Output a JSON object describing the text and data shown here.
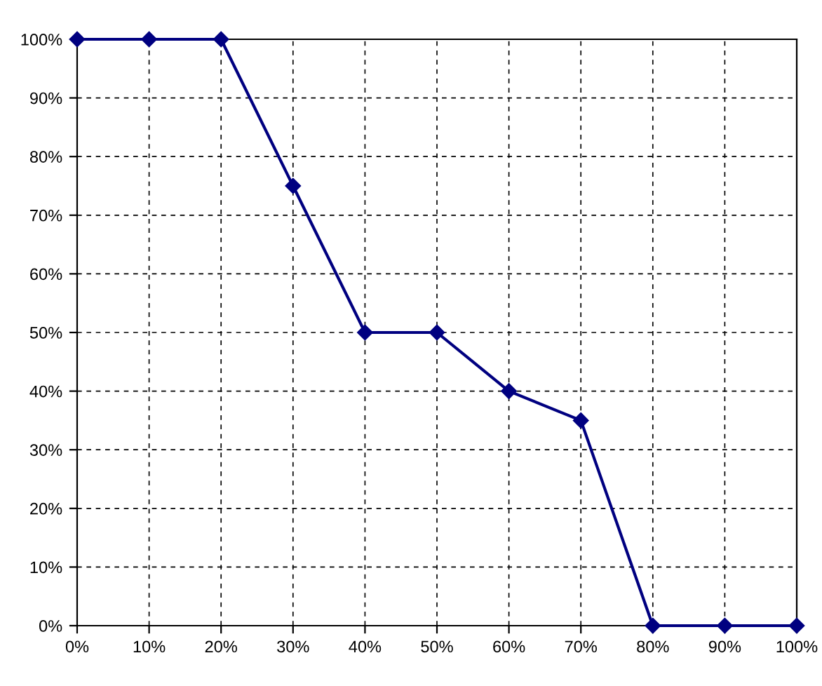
{
  "chart_data": {
    "type": "line",
    "x": [
      0,
      10,
      20,
      30,
      40,
      50,
      60,
      70,
      80,
      90,
      100
    ],
    "series": [
      {
        "color": "#000080",
        "values": [
          100,
          100,
          100,
          75,
          50,
          50,
          40,
          35,
          0,
          0,
          0
        ]
      }
    ],
    "xlim": [
      0,
      100
    ],
    "xticks": [
      {
        "value": 0,
        "label": "0%"
      },
      {
        "value": 10,
        "label": "10%"
      },
      {
        "value": 20,
        "label": "20%"
      },
      {
        "value": 30,
        "label": "30%"
      },
      {
        "value": 40,
        "label": "40%"
      },
      {
        "value": 50,
        "label": "50%"
      },
      {
        "value": 60,
        "label": "60%"
      },
      {
        "value": 70,
        "label": "70%"
      },
      {
        "value": 80,
        "label": "80%"
      },
      {
        "value": 90,
        "label": "90%"
      },
      {
        "value": 100,
        "label": "100%"
      }
    ],
    "ylim": [
      0,
      100
    ],
    "yticks": [
      {
        "value": 0,
        "label": "0%"
      },
      {
        "value": 10,
        "label": "10%"
      },
      {
        "value": 20,
        "label": "20%"
      },
      {
        "value": 30,
        "label": "30%"
      },
      {
        "value": 40,
        "label": "40%"
      },
      {
        "value": 50,
        "label": "50%"
      },
      {
        "value": 60,
        "label": "60%"
      },
      {
        "value": 70,
        "label": "70%"
      },
      {
        "value": 80,
        "label": "80%"
      },
      {
        "value": 90,
        "label": "90%"
      },
      {
        "value": 100,
        "label": "100%"
      }
    ],
    "grid": true,
    "marker": "diamond",
    "line_style": "solid",
    "legend": false
  }
}
